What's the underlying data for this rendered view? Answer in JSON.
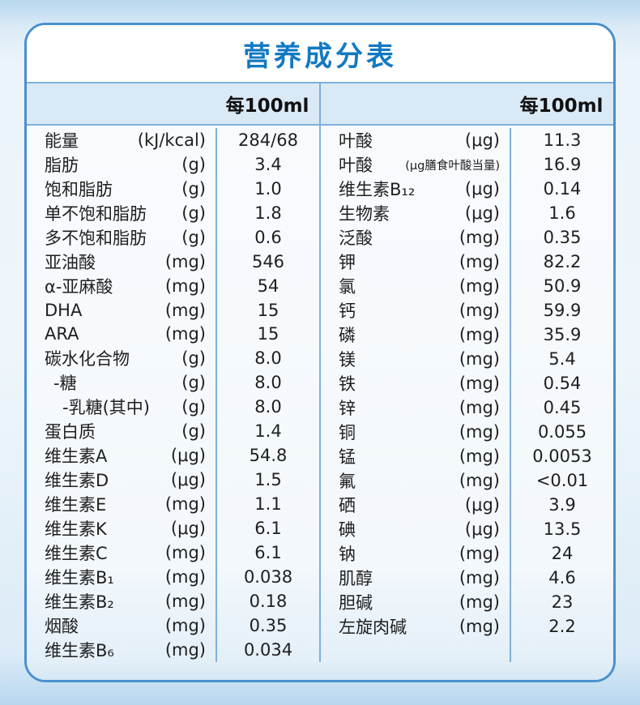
{
  "title": "营养成分表",
  "columns": {
    "left_header": "每100ml",
    "right_header": "每100ml"
  },
  "colors": {
    "border_blue": "#4a90cd",
    "title_blue": "#1279c2",
    "line_blue": "#7fb0db",
    "band_blue": "#d9e9f6"
  },
  "left_rows": [
    {
      "name": "能量",
      "unit": "(kJ/kcal)",
      "value": "284/68"
    },
    {
      "name": "脂肪",
      "unit": "(g)",
      "value": "3.4"
    },
    {
      "name": "饱和脂肪",
      "unit": "(g)",
      "value": "1.0"
    },
    {
      "name": "单不饱和脂肪",
      "unit": "(g)",
      "value": "1.8"
    },
    {
      "name": "多不饱和脂肪",
      "unit": "(g)",
      "value": "0.6"
    },
    {
      "name": "亚油酸",
      "unit": "(mg)",
      "value": "546"
    },
    {
      "name": "α-亚麻酸",
      "unit": "(mg)",
      "value": "54"
    },
    {
      "name": "DHA",
      "unit": "(mg)",
      "value": "15"
    },
    {
      "name": "ARA",
      "unit": "(mg)",
      "value": "15"
    },
    {
      "name": "碳水化合物",
      "unit": "(g)",
      "value": "8.0"
    },
    {
      "name": "-糖",
      "unit": "(g)",
      "value": "8.0",
      "indent": 1
    },
    {
      "name": "-乳糖(其中)",
      "unit": "(g)",
      "value": "8.0",
      "indent": 2
    },
    {
      "name": "蛋白质",
      "unit": "(g)",
      "value": "1.4"
    },
    {
      "name": "维生素A",
      "unit": "(μg)",
      "value": "54.8"
    },
    {
      "name": "维生素D",
      "unit": "(μg)",
      "value": "1.5"
    },
    {
      "name": "维生素E",
      "unit": "(mg)",
      "value": "1.1"
    },
    {
      "name": "维生素K",
      "unit": "(μg)",
      "value": "6.1"
    },
    {
      "name": "维生素C",
      "unit": "(mg)",
      "value": "6.1"
    },
    {
      "name": "维生素B₁",
      "unit": "(mg)",
      "value": "0.038"
    },
    {
      "name": "维生素B₂",
      "unit": "(mg)",
      "value": "0.18"
    },
    {
      "name": "烟酸",
      "unit": "(mg)",
      "value": "0.35"
    },
    {
      "name": "维生素B₆",
      "unit": "(mg)",
      "value": "0.034"
    }
  ],
  "right_rows": [
    {
      "name": "叶酸",
      "unit": "(μg)",
      "value": "11.3"
    },
    {
      "name": "叶酸",
      "unit": "(μg膳食叶酸当量)",
      "value": "16.9",
      "small_unit": true
    },
    {
      "name": "维生素B₁₂",
      "unit": "(μg)",
      "value": "0.14"
    },
    {
      "name": "生物素",
      "unit": "(μg)",
      "value": "1.6"
    },
    {
      "name": "泛酸",
      "unit": "(mg)",
      "value": "0.35"
    },
    {
      "name": "钾",
      "unit": "(mg)",
      "value": "82.2"
    },
    {
      "name": "氯",
      "unit": "(mg)",
      "value": "50.9"
    },
    {
      "name": "钙",
      "unit": "(mg)",
      "value": "59.9"
    },
    {
      "name": "磷",
      "unit": "(mg)",
      "value": "35.9"
    },
    {
      "name": "镁",
      "unit": "(mg)",
      "value": "5.4"
    },
    {
      "name": "铁",
      "unit": "(mg)",
      "value": "0.54"
    },
    {
      "name": "锌",
      "unit": "(mg)",
      "value": "0.45"
    },
    {
      "name": "铜",
      "unit": "(mg)",
      "value": "0.055"
    },
    {
      "name": "锰",
      "unit": "(mg)",
      "value": "0.0053"
    },
    {
      "name": "氟",
      "unit": "(mg)",
      "value": "<0.01"
    },
    {
      "name": "硒",
      "unit": "(μg)",
      "value": "3.9"
    },
    {
      "name": "碘",
      "unit": "(μg)",
      "value": "13.5"
    },
    {
      "name": "钠",
      "unit": "(mg)",
      "value": "24"
    },
    {
      "name": "肌醇",
      "unit": "(mg)",
      "value": "4.6"
    },
    {
      "name": "胆碱",
      "unit": "(mg)",
      "value": "23"
    },
    {
      "name": "左旋肉碱",
      "unit": "(mg)",
      "value": "2.2"
    }
  ]
}
